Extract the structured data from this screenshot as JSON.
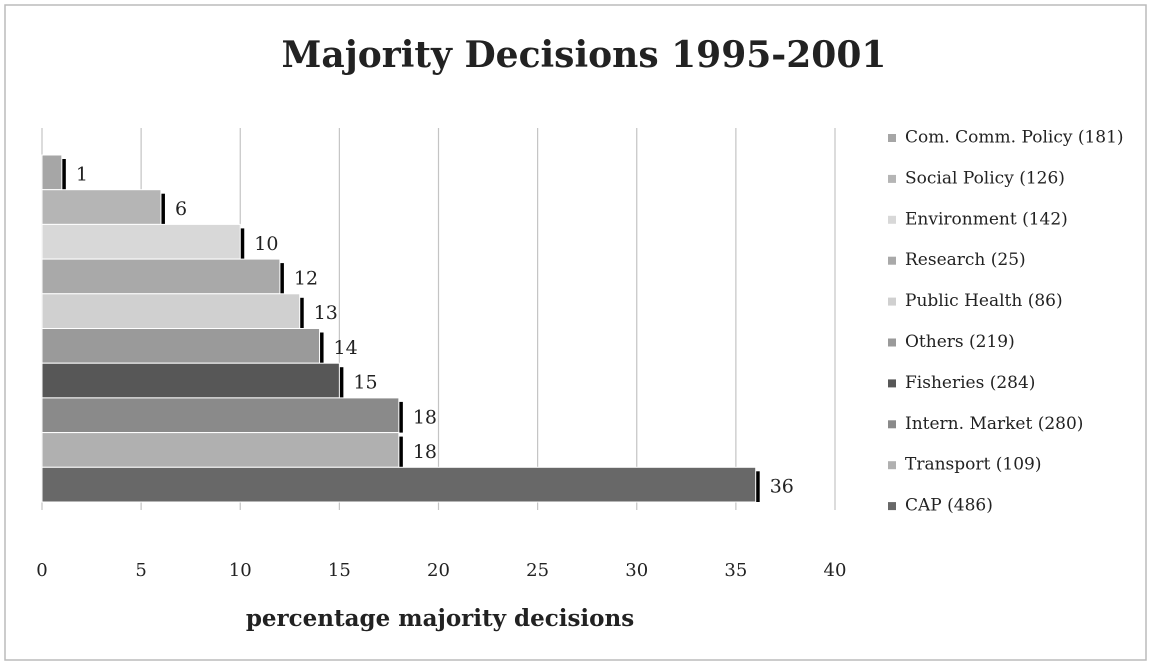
{
  "chart_data": {
    "type": "bar",
    "orientation": "horizontal",
    "title": "Majority Decisions 1995-2001",
    "x_label": "percentage majority decisions",
    "series": [
      {
        "name": "Com. Comm. Policy (181)",
        "color": "#a6a6a6",
        "values": [
          1
        ]
      },
      {
        "name": "Social Policy (126)",
        "color": "#b5b5b5",
        "values": [
          6
        ]
      },
      {
        "name": "Environment (142)",
        "color": "#d8d8d8",
        "values": [
          10
        ]
      },
      {
        "name": "Research (25)",
        "color": "#a9a9a9",
        "values": [
          12
        ]
      },
      {
        "name": "Public Health (86)",
        "color": "#d0d0d0",
        "values": [
          13
        ]
      },
      {
        "name": "Others (219)",
        "color": "#9a9a9a",
        "values": [
          14
        ]
      },
      {
        "name": "Fisheries (284)",
        "color": "#575757",
        "values": [
          15
        ]
      },
      {
        "name": "Intern. Market (280)",
        "color": "#8a8a8a",
        "values": [
          18
        ]
      },
      {
        "name": "Transport (109)",
        "color": "#b0b0b0",
        "values": [
          18
        ]
      },
      {
        "name": "CAP (486)",
        "color": "#686868",
        "values": [
          36
        ]
      }
    ],
    "xlim": [
      0,
      40
    ],
    "xticks": [
      0,
      5,
      10,
      15,
      20,
      25,
      30,
      35,
      40
    ],
    "grid": true,
    "legend": "right"
  }
}
